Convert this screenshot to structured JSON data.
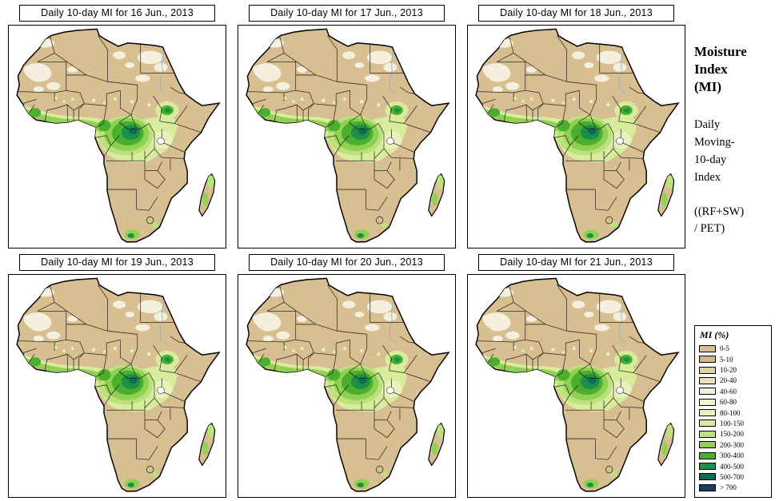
{
  "panels": [
    {
      "title": "Daily 10-day MI for 16 Jun., 2013"
    },
    {
      "title": "Daily 10-day MI for 17 Jun., 2013"
    },
    {
      "title": "Daily 10-day MI for 18 Jun., 2013"
    },
    {
      "title": "Daily 10-day MI for 19 Jun., 2013"
    },
    {
      "title": "Daily 10-day MI for 20 Jun., 2013"
    },
    {
      "title": "Daily 10-day MI for 21 Jun., 2013"
    }
  ],
  "sidebar": {
    "title": "Moisture\nIndex\n(MI)",
    "subtitle": "Daily\nMoving-\n10-day\nIndex",
    "formula": "((RF+SW)\n/ PET)"
  },
  "legend": {
    "title": "MI (%)",
    "entries": [
      {
        "label": "0-5",
        "color": "#d8bf92"
      },
      {
        "label": "5-10",
        "color": "#d2b683"
      },
      {
        "label": "10-20",
        "color": "#e0d0a8"
      },
      {
        "label": "20-40",
        "color": "#ecdfc0"
      },
      {
        "label": "40-60",
        "color": "#f5efdd"
      },
      {
        "label": "60-80",
        "color": "#f3f3d1"
      },
      {
        "label": "80-100",
        "color": "#e9f1bd"
      },
      {
        "label": "100-150",
        "color": "#d9ec9e"
      },
      {
        "label": "150-200",
        "color": "#bce27d"
      },
      {
        "label": "200-300",
        "color": "#90d052"
      },
      {
        "label": "300-400",
        "color": "#4aaf2e"
      },
      {
        "label": "400-500",
        "color": "#1d9048"
      },
      {
        "label": "500-700",
        "color": "#0c6a55"
      },
      {
        "label": "> 700",
        "color": "#163e63"
      }
    ]
  },
  "map_colors": {
    "land": "#d8bf92",
    "ocean": "#ffffff",
    "border": "#1a1a1a"
  }
}
